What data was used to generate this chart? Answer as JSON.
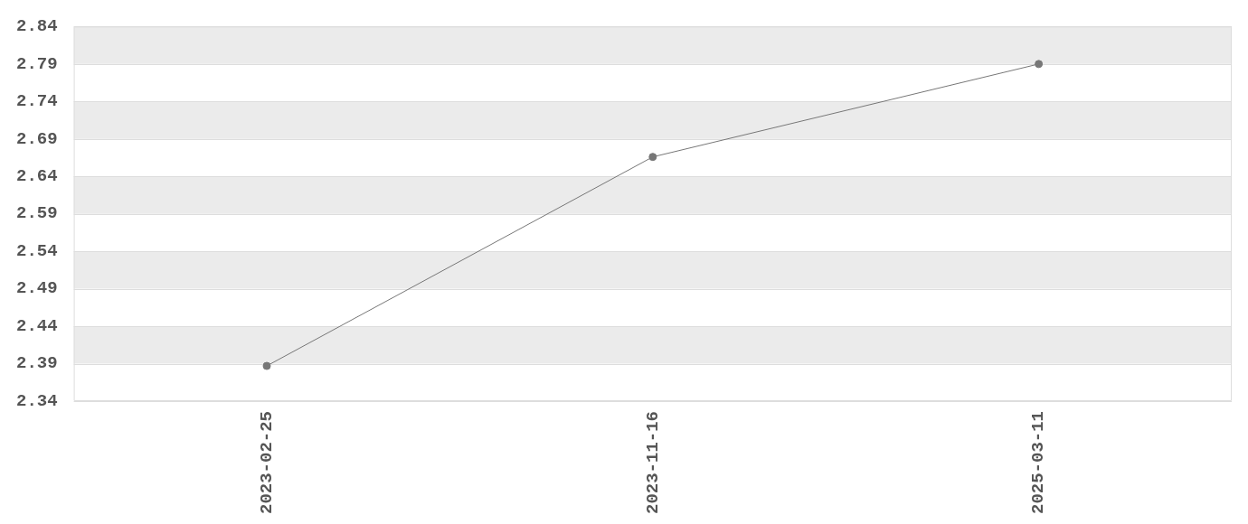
{
  "chart_data": {
    "type": "line",
    "categories": [
      "2023-02-25",
      "2023-11-16",
      "2025-03-11"
    ],
    "series": [
      {
        "color": "#777777",
        "values": [
          2.387,
          2.666,
          2.79
        ]
      }
    ],
    "ylim": [
      2.34,
      2.84
    ],
    "yticks": [
      2.34,
      2.39,
      2.44,
      2.49,
      2.54,
      2.59,
      2.64,
      2.69,
      2.74,
      2.79,
      2.84
    ],
    "grid": "y",
    "legend": false,
    "marker": "circle",
    "line_style": "solid"
  }
}
